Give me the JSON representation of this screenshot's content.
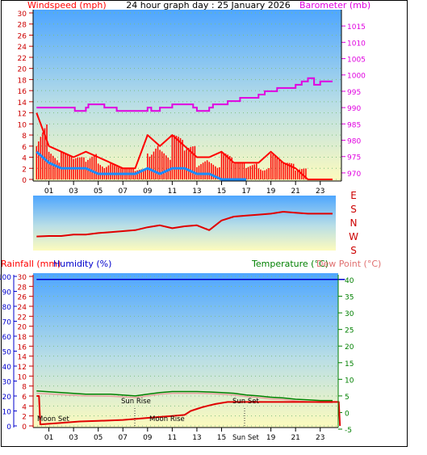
{
  "chart_data": [
    {
      "type": "line",
      "title": "24 hour graph day : 25 January 2026",
      "y_left_label": "Windspeed (mph)",
      "y_right_label": "Barometer (mb)",
      "y_left_ticks": [
        "0",
        "2",
        "4",
        "6",
        "8",
        "10",
        "12",
        "14",
        "16",
        "18",
        "20",
        "22",
        "24",
        "26",
        "28",
        "30"
      ],
      "y_right_ticks": [
        "970",
        "975",
        "980",
        "985",
        "990",
        "995",
        "1000",
        "1005",
        "1010",
        "1015"
      ],
      "x_ticks": [
        "01",
        "03",
        "05",
        "07",
        "09",
        "11",
        "13",
        "15",
        "17",
        "19",
        "21",
        "23"
      ],
      "ylim_left": [
        0,
        30
      ],
      "ylim_right": [
        968,
        1019
      ],
      "xlim_hours": [
        0,
        25
      ],
      "series": [
        {
          "name": "Barometer (mb)",
          "axis": "right",
          "color": "#e000e0",
          "x": [
            0,
            3,
            3.1,
            4,
            4.2,
            5.5,
            6.5,
            7.5,
            9,
            9.3,
            10,
            11,
            12,
            12.7,
            13,
            14,
            14.3,
            15,
            15.5,
            16,
            16.5,
            17,
            18,
            18.5,
            19,
            19.5,
            20,
            21,
            21.5,
            22,
            22.5,
            23,
            24
          ],
          "values": [
            990,
            990,
            989,
            990,
            991,
            990,
            989,
            989,
            990,
            989,
            990,
            991,
            991,
            990,
            989,
            990,
            991,
            991,
            992,
            992,
            993,
            993,
            994,
            995,
            995,
            996,
            996,
            997,
            998,
            999,
            997,
            998,
            998
          ]
        },
        {
          "name": "Wind Gust",
          "axis": "left",
          "color": "#ff0000",
          "x": [
            0,
            1,
            2,
            3,
            4,
            5,
            6,
            7,
            8,
            9,
            10,
            11,
            12,
            13,
            14,
            15,
            16,
            17,
            18,
            19,
            20,
            21,
            22,
            23,
            24
          ],
          "values": [
            12,
            6,
            5,
            4,
            5,
            4,
            3,
            2,
            2,
            8,
            6,
            8,
            6,
            4,
            4,
            5,
            3,
            3,
            3,
            5,
            3,
            2,
            0,
            0,
            0
          ]
        },
        {
          "name": "Wind Average",
          "axis": "left",
          "color": "#1a8cff",
          "x": [
            0,
            1,
            2,
            3,
            4,
            5,
            6,
            7,
            8,
            9,
            10,
            11,
            12,
            13,
            14,
            15,
            16,
            17
          ],
          "values": [
            5,
            3,
            2,
            2,
            2,
            1,
            1,
            1,
            1,
            2,
            1,
            2,
            2,
            1,
            1,
            0,
            0,
            0
          ]
        }
      ]
    },
    {
      "type": "line",
      "title": "",
      "y_right_ticks": [
        "E",
        "S",
        "N",
        "W",
        "S"
      ],
      "ylim": [
        0,
        5
      ],
      "series": [
        {
          "name": "Wind Direction",
          "color": "#e00000",
          "x": [
            0,
            1,
            2,
            3,
            4,
            5,
            6,
            7,
            8,
            9,
            10,
            11,
            12,
            13,
            14,
            15,
            16,
            17,
            18,
            19,
            20,
            21,
            22,
            23,
            24
          ],
          "values": [
            0.95,
            1.0,
            1.0,
            1.15,
            1.15,
            1.3,
            1.4,
            1.5,
            1.6,
            1.9,
            2.1,
            1.8,
            2.0,
            2.1,
            1.6,
            2.6,
            3.0,
            3.1,
            3.2,
            3.3,
            3.5,
            3.4,
            3.3,
            3.3,
            3.3
          ]
        }
      ]
    },
    {
      "type": "line",
      "title": "",
      "y_left_labels": [
        "Rainfall (mm)",
        "Humidity (%)"
      ],
      "y_right_labels": [
        "Temperature (°C)",
        "Dew Point (°C)"
      ],
      "rain_ticks": [
        "0",
        "2",
        "4",
        "6",
        "8",
        "10",
        "12",
        "14",
        "16",
        "18",
        "20",
        "22",
        "24",
        "26",
        "28",
        "30"
      ],
      "humidity_ticks": [
        "0",
        "10",
        "20",
        "30",
        "40",
        "50",
        "60",
        "70",
        "80",
        "90",
        "100"
      ],
      "temp_ticks": [
        "-5",
        "0",
        "5",
        "10",
        "15",
        "20",
        "25",
        "30",
        "35",
        "40"
      ],
      "x_ticks": [
        "01",
        "03",
        "05",
        "07",
        "09",
        "11",
        "13",
        "15",
        "19",
        "21",
        "23"
      ],
      "annotations": [
        "Moon Set",
        "Sun Rise",
        "Moon Rise",
        "Sun Set",
        "Sun Set"
      ],
      "ylim_rain": [
        0,
        30
      ],
      "ylim_humidity": [
        0,
        100
      ],
      "ylim_temperature": [
        -5,
        40
      ],
      "series": [
        {
          "name": "Humidity (%)",
          "axis": "humidity",
          "color": "#0000cc",
          "x": [
            0,
            25
          ],
          "values": [
            98,
            98
          ]
        },
        {
          "name": "Temperature (°C)",
          "axis": "temperature",
          "color": "#008000",
          "x": [
            0,
            2,
            4,
            6,
            8,
            9,
            10,
            11,
            12,
            13,
            14,
            15,
            16,
            17,
            18,
            19,
            20,
            21,
            22,
            23,
            24
          ],
          "values": [
            6.5,
            6.0,
            5.5,
            5.5,
            5.0,
            5.5,
            6.0,
            6.3,
            6.3,
            6.3,
            6.2,
            6.0,
            5.8,
            5.3,
            5.0,
            4.6,
            4.4,
            4.0,
            3.8,
            3.6,
            3.6
          ]
        },
        {
          "name": "Dew Point (°C)",
          "axis": "temperature",
          "color": "#e8a0a0",
          "x": [
            0,
            2,
            4,
            6,
            8,
            9,
            10,
            11,
            12,
            13,
            14,
            15,
            16,
            17,
            18,
            19,
            20,
            21,
            22,
            23,
            24
          ],
          "values": [
            5.8,
            5.4,
            5.0,
            4.9,
            4.5,
            5.0,
            5.5,
            5.8,
            5.8,
            5.8,
            5.7,
            5.5,
            5.3,
            4.8,
            4.5,
            4.1,
            3.9,
            3.5,
            3.2,
            3.0,
            3.0
          ]
        },
        {
          "name": "Rainfall (mm)",
          "axis": "rain",
          "color": "#e00000",
          "x": [
            0,
            0.2,
            0.3,
            2,
            3.5,
            5,
            7,
            8,
            9,
            10,
            11,
            12,
            12.5,
            13,
            13.5,
            14,
            14.5,
            15,
            15.5,
            24.5,
            24.6
          ],
          "values": [
            6,
            6,
            0.3,
            0.6,
            0.9,
            1.0,
            1.2,
            1.4,
            1.6,
            1.8,
            2.0,
            2.2,
            3.0,
            3.4,
            3.8,
            4.1,
            4.4,
            4.6,
            4.8,
            4.8,
            0
          ]
        }
      ]
    }
  ]
}
